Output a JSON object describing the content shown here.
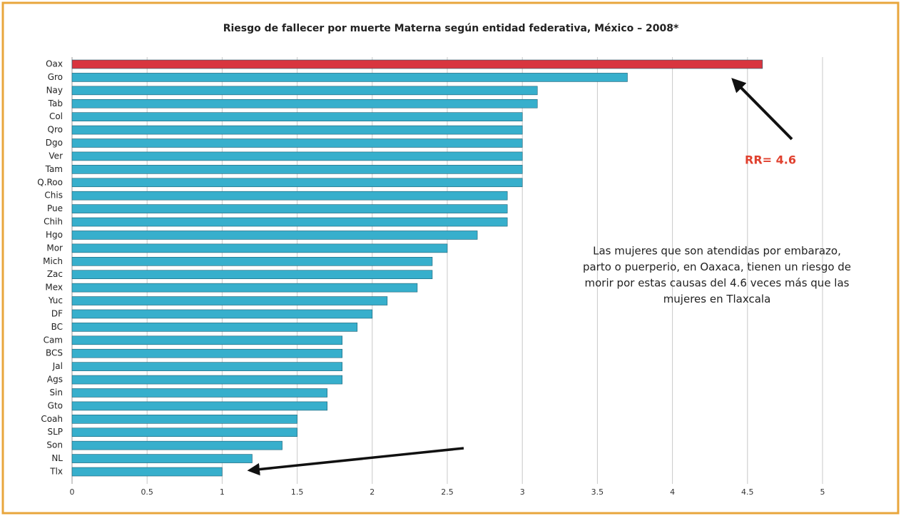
{
  "chart_data": {
    "type": "barh",
    "title": "Riesgo de fallecer por muerte Materna según entidad federativa, México – 2008*",
    "categories": [
      "Oax",
      "Gro",
      "Nay",
      "Tab",
      "Col",
      "Qro",
      "Dgo",
      "Ver",
      "Tam",
      "Q.Roo",
      "Chis",
      "Pue",
      "Chih",
      "Hgo",
      "Mor",
      "Mich",
      "Zac",
      "Mex",
      "Yuc",
      "DF",
      "BC",
      "Cam",
      "BCS",
      "Jal",
      "Ags",
      "Sin",
      "Gto",
      "Coah",
      "SLP",
      "Son",
      "NL",
      "Tlx"
    ],
    "values": [
      4.6,
      3.7,
      3.1,
      3.1,
      3.0,
      3.0,
      3.0,
      3.0,
      3.0,
      3.0,
      2.9,
      2.9,
      2.9,
      2.7,
      2.5,
      2.4,
      2.4,
      2.3,
      2.1,
      2.0,
      1.9,
      1.8,
      1.8,
      1.8,
      1.8,
      1.7,
      1.7,
      1.5,
      1.5,
      1.4,
      1.2,
      1.0
    ],
    "colors": [
      "#d8353f",
      "#37afcc",
      "#37afcc",
      "#37afcc",
      "#37afcc",
      "#37afcc",
      "#37afcc",
      "#37afcc",
      "#37afcc",
      "#37afcc",
      "#37afcc",
      "#37afcc",
      "#37afcc",
      "#37afcc",
      "#37afcc",
      "#37afcc",
      "#37afcc",
      "#37afcc",
      "#37afcc",
      "#37afcc",
      "#37afcc",
      "#37afcc",
      "#37afcc",
      "#37afcc",
      "#37afcc",
      "#37afcc",
      "#37afcc",
      "#37afcc",
      "#37afcc",
      "#37afcc",
      "#37afcc",
      "#37afcc"
    ],
    "xlim": [
      0,
      5
    ],
    "xticks": [
      0,
      0.5,
      1,
      1.5,
      2,
      2.5,
      3,
      3.5,
      4,
      4.5,
      5
    ],
    "grid": true,
    "annotations": {
      "rr": "RR= 4.6",
      "note": [
        "Las mujeres que son atendidas por embarazo,",
        "parto o puerperio, en Oaxaca, tienen un riesgo de",
        "morir por estas causas del  4.6 veces más que las",
        "mujeres en Tlaxcala"
      ]
    }
  }
}
